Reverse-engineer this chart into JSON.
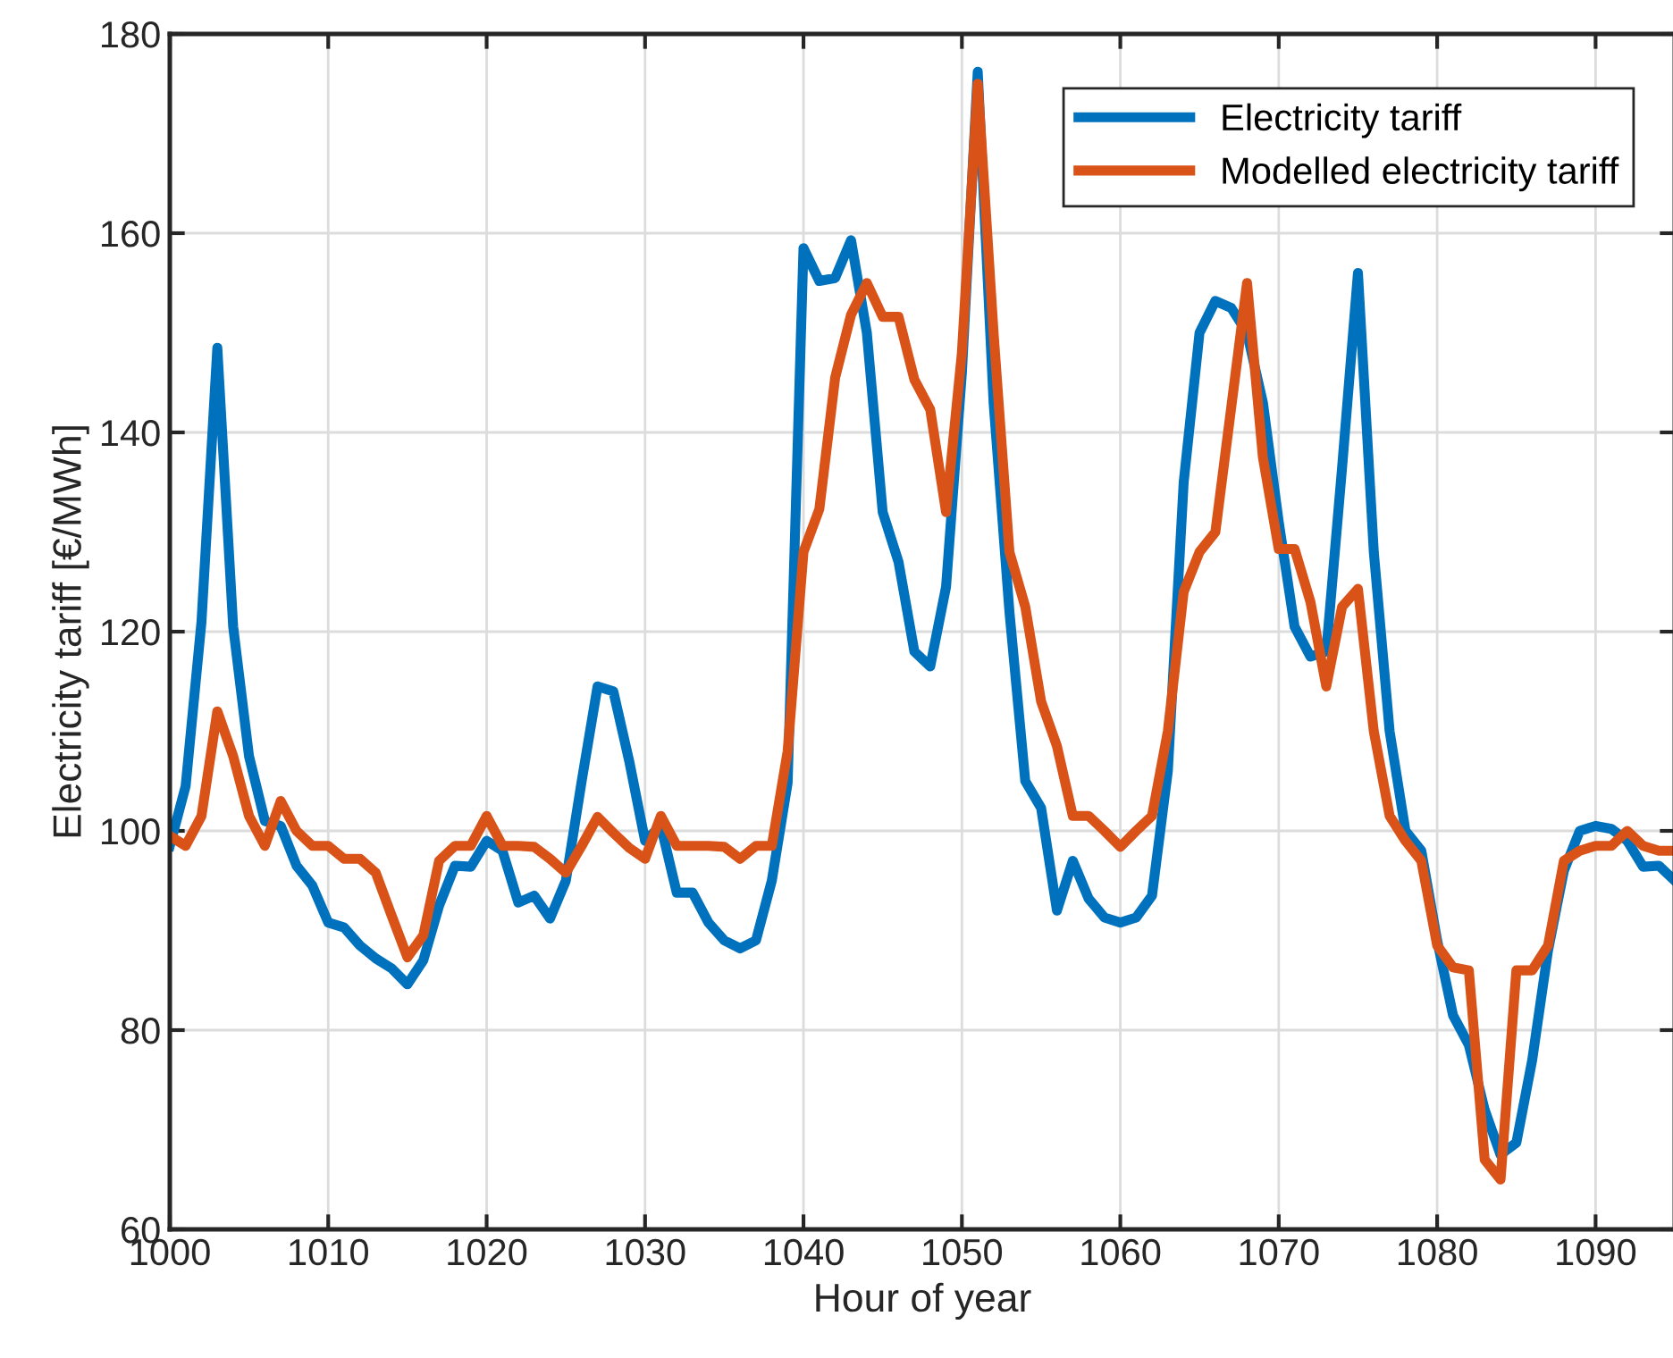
{
  "chart_data": {
    "type": "line",
    "xlabel": "Hour of year",
    "ylabel": "Electricity tariff [€/MWh]",
    "x": [
      1000,
      1001,
      1002,
      1003,
      1004,
      1005,
      1006,
      1007,
      1008,
      1009,
      1010,
      1011,
      1012,
      1013,
      1014,
      1015,
      1016,
      1017,
      1018,
      1019,
      1020,
      1021,
      1022,
      1023,
      1024,
      1025,
      1026,
      1027,
      1028,
      1029,
      1030,
      1031,
      1032,
      1033,
      1034,
      1035,
      1036,
      1037,
      1038,
      1039,
      1040,
      1041,
      1042,
      1043,
      1044,
      1045,
      1046,
      1047,
      1048,
      1049,
      1050,
      1051,
      1052,
      1053,
      1054,
      1055,
      1056,
      1057,
      1058,
      1059,
      1060,
      1061,
      1062,
      1063,
      1064,
      1065,
      1066,
      1067,
      1068,
      1069,
      1070,
      1071,
      1072,
      1073,
      1074,
      1075,
      1076,
      1077,
      1078,
      1079,
      1080,
      1081,
      1082,
      1083,
      1084,
      1085,
      1086,
      1087,
      1088,
      1089,
      1090,
      1091,
      1092,
      1093,
      1094,
      1095
    ],
    "series": [
      {
        "name": "Electricity tariff",
        "color": "#0072bd",
        "values": [
          98.5,
          104.5,
          121,
          148.5,
          120.5,
          107.5,
          101,
          100.5,
          96.5,
          94.5,
          90.8,
          90.3,
          88.5,
          87.2,
          86.2,
          84.6,
          87,
          92.5,
          96.5,
          96.4,
          99,
          98,
          92.8,
          93.5,
          91.2,
          95,
          105,
          114.5,
          114,
          107,
          99,
          100.5,
          93.8,
          93.8,
          90.8,
          89,
          88.2,
          89,
          95,
          104.8,
          158.5,
          155.2,
          155.5,
          159.3,
          150,
          132,
          127,
          118,
          116.5,
          124.5,
          146,
          176.2,
          143,
          122,
          105,
          102.3,
          92,
          97,
          93.2,
          91.3,
          90.8,
          91.3,
          93.5,
          106,
          135,
          150,
          153.2,
          152.5,
          150,
          143,
          131,
          120.5,
          117.5,
          118,
          136.5,
          156,
          128,
          110,
          100,
          98,
          89,
          81.5,
          78.5,
          72,
          67.5,
          68.7,
          77,
          88,
          96,
          100,
          100.5,
          100.2,
          99,
          96.4,
          96.5,
          95
        ]
      },
      {
        "name": "Modelled electricity tariff",
        "color": "#d95319",
        "values": [
          99.5,
          98.5,
          101.5,
          112,
          107.5,
          101.5,
          98.5,
          103,
          100,
          98.5,
          98.5,
          97.2,
          97.2,
          95.8,
          91.5,
          87.3,
          89.5,
          97,
          98.5,
          98.5,
          101.5,
          98.5,
          98.5,
          98.4,
          97.2,
          95.8,
          98.5,
          101.4,
          99.8,
          98.3,
          97.2,
          101.5,
          98.5,
          98.5,
          98.5,
          98.4,
          97.2,
          98.5,
          98.5,
          108,
          128,
          132.3,
          145.5,
          151.8,
          155,
          151.6,
          151.6,
          145.3,
          142.3,
          132,
          148,
          175,
          150,
          128,
          122.5,
          113,
          108.5,
          101.5,
          101.5,
          100,
          98.4,
          100,
          101.5,
          110,
          124,
          128,
          130,
          142.5,
          155,
          137.5,
          128.3,
          128.3,
          123,
          114.5,
          122.5,
          124.3,
          110,
          101.5,
          99,
          97,
          88.5,
          86.3,
          86,
          67,
          65,
          86,
          86,
          88.5,
          97,
          98,
          98.5,
          98.5,
          100,
          98.5,
          98,
          98
        ]
      }
    ],
    "xlim": [
      1000,
      1095
    ],
    "xticks": [
      1000,
      1010,
      1020,
      1030,
      1040,
      1050,
      1060,
      1070,
      1080,
      1090
    ],
    "ylim": [
      60,
      180
    ],
    "yticks": [
      60,
      80,
      100,
      120,
      140,
      160,
      180
    ],
    "grid": true,
    "legend": "top right",
    "line_style": "solid",
    "marker": "none"
  }
}
